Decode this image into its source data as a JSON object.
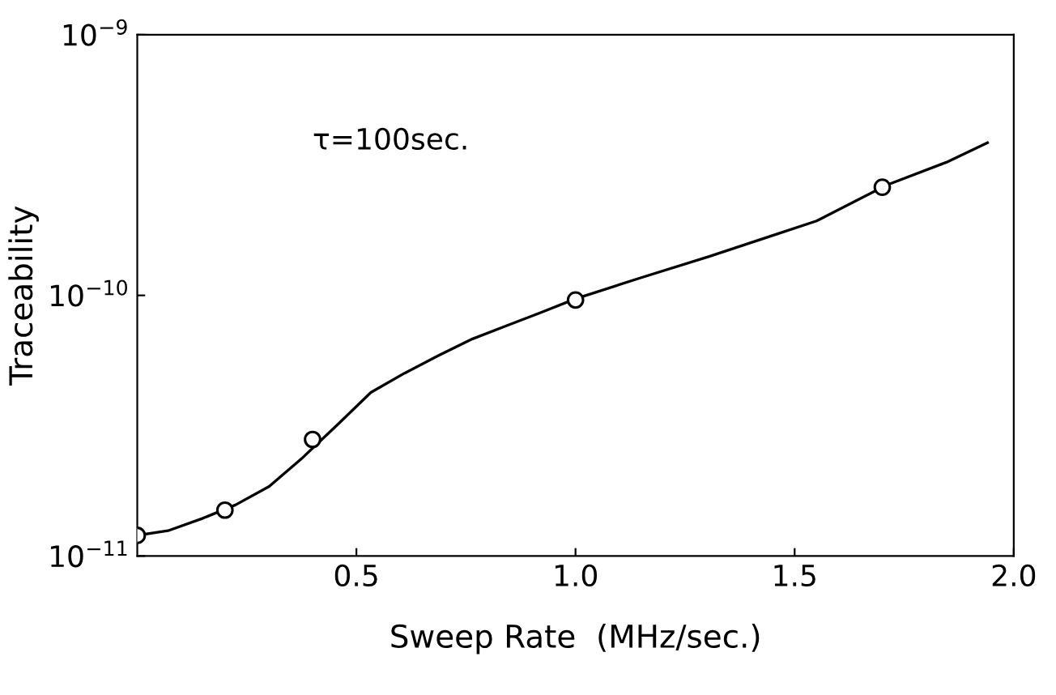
{
  "chart_data": {
    "type": "line",
    "xlabel": "Sweep Rate  (MHz/sec.)",
    "ylabel": "Traceability",
    "annotations": [
      "τ=100sec."
    ],
    "log": "y",
    "grid": false,
    "legend": false,
    "xlim": [
      0,
      2.0
    ],
    "xticks": [
      0.5,
      {
        "value": 1.0,
        "label": "1.0"
      },
      1.5,
      {
        "value": 2.0,
        "label": "2.0"
      }
    ],
    "ylim": [
      1e-11,
      1e-09
    ],
    "yticks": [
      {
        "value": 1e-11,
        "label": "10$^{−11}$"
      },
      {
        "value": 1e-10,
        "label": "10$^{−10}$"
      },
      {
        "value": 1e-09,
        "label": "10$^{−9}$"
      }
    ],
    "series": [
      {
        "type": "scatter",
        "color": "#000000",
        "marker": "circle",
        "x": [
          0,
          0.2,
          0.4,
          1.0,
          1.7
        ],
        "values": [
          1.2e-11,
          1.5e-11,
          2.8e-11,
          9.6e-11,
          2.6e-10
        ]
      },
      {
        "color": "#000000",
        "marker": "none",
        "line_style": "solid",
        "x": [
          0,
          0.07,
          0.147,
          0.224,
          0.301,
          0.378,
          0.456,
          0.533,
          0.61,
          0.687,
          0.765,
          0.842,
          0.919,
          1.0,
          1.15,
          1.305,
          1.46,
          1.55,
          1.71,
          1.846,
          1.94
        ],
        "values": [
          1.2e-11,
          1.25e-11,
          1.39e-11,
          1.57e-11,
          1.85e-11,
          2.39e-11,
          3.18e-11,
          4.24e-11,
          5.03e-11,
          5.87e-11,
          6.81e-11,
          7.64e-11,
          8.57e-11,
          9.7e-11,
          1.17e-10,
          1.41e-10,
          1.72e-10,
          1.93e-10,
          2.65e-10,
          3.24e-10,
          3.85e-10
        ]
      }
    ]
  }
}
